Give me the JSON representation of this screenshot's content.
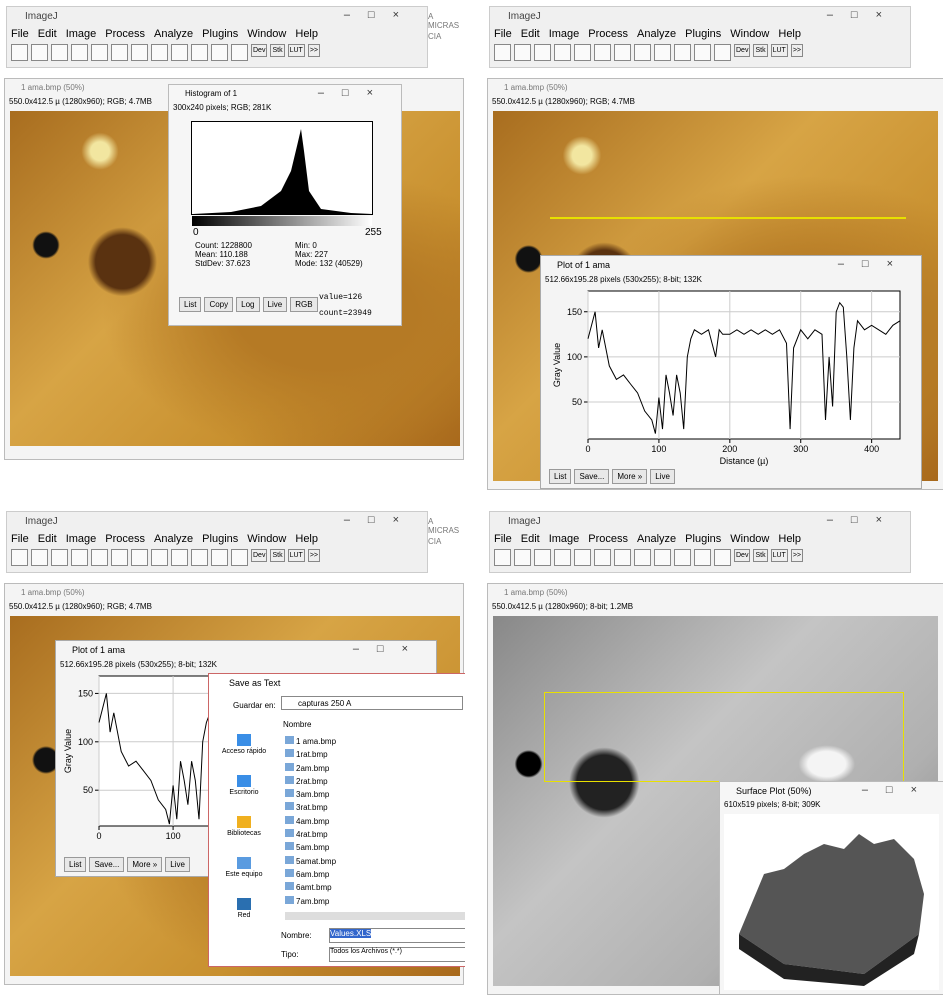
{
  "imagej": {
    "title": "ImageJ",
    "menu": [
      "File",
      "Edit",
      "Image",
      "Process",
      "Analyze",
      "Plugins",
      "Window",
      "Help"
    ],
    "toolbar": [
      "Dev",
      "Stk",
      "LUT",
      ">>"
    ],
    "background_text": [
      "A MICRAS",
      "CIA"
    ]
  },
  "image_window": {
    "title": "1 ama.bmp (50%)",
    "info_rgb": "550.0x412.5 µ (1280x960); RGB; 4.7MB",
    "info_8bit": "550.0x412.5 µ (1280x960); 8-bit; 1.2MB"
  },
  "histogram": {
    "title": "Histogram of 1",
    "info": "300x240 pixels; RGB; 281K",
    "axis_min": "0",
    "axis_max": "255",
    "stats": [
      "Count: 1228800",
      "Min: 0",
      "Mean: 110.188",
      "Max: 227",
      "StdDev: 37.623",
      "Mode: 132 (40529)"
    ],
    "buttons": [
      "List",
      "Copy",
      "Log",
      "Live",
      "RGB"
    ],
    "value": "value=126",
    "count": "count=23949"
  },
  "profile": {
    "x": [
      0,
      10,
      15,
      20,
      30,
      40,
      50,
      60,
      70,
      80,
      90,
      95,
      100,
      105,
      110,
      115,
      120,
      125,
      130,
      135,
      140,
      145,
      150,
      160,
      170,
      180,
      185,
      190,
      200,
      210,
      220,
      230,
      240,
      250,
      260,
      270,
      280,
      285,
      290,
      300,
      310,
      320,
      330,
      335,
      340,
      345,
      350,
      355,
      360,
      365,
      370,
      375,
      380,
      390,
      400,
      410,
      420,
      430,
      440
    ],
    "values": [
      120,
      150,
      110,
      130,
      90,
      75,
      80,
      70,
      60,
      40,
      30,
      15,
      55,
      20,
      80,
      60,
      35,
      80,
      60,
      20,
      100,
      120,
      130,
      125,
      130,
      100,
      130,
      125,
      125,
      130,
      125,
      130,
      125,
      130,
      125,
      130,
      115,
      20,
      110,
      130,
      120,
      130,
      125,
      30,
      100,
      45,
      150,
      160,
      155,
      100,
      30,
      110,
      140,
      130,
      135,
      130,
      125,
      135,
      140
    ]
  },
  "plots": [
    {
      "title": "Plot of 1 ama",
      "info": "512.66x195.28 pixels (530x255); 8-bit; 132K",
      "ylabel": "Gray Value",
      "xlabel": "Distance (µ)",
      "xlim": [
        0,
        440
      ],
      "ylim": [
        9,
        173
      ],
      "xticks": [
        0,
        100,
        200,
        300,
        400
      ],
      "yticks": [
        50,
        100,
        150
      ]
    },
    {
      "xlim": [
        0,
        440
      ],
      "ylim": [
        13,
        168
      ],
      "xticks": [
        0,
        100
      ],
      "yticks": [
        50,
        100,
        150
      ]
    }
  ],
  "plot_buttons": [
    "List",
    "Save...",
    "More »",
    "Live"
  ],
  "save_dialog": {
    "title": "Save as Text",
    "save_in_label": "Guardar en:",
    "folder": "capturas 250 A",
    "column": "Nombre",
    "places": [
      "Acceso rápido",
      "Escritorio",
      "Bibliotecas",
      "Este equipo",
      "Red"
    ],
    "files": [
      "1 ama.bmp",
      "1rat.bmp",
      "2am.bmp",
      "2rat.bmp",
      "3am.bmp",
      "3rat.bmp",
      "4am.bmp",
      "4rat.bmp",
      "5am.bmp",
      "5amat.bmp",
      "6am.bmp",
      "6amt.bmp",
      "7am.bmp"
    ],
    "name_label": "Nombre:",
    "name_value": "Values.XLS",
    "type_label": "Tipo:",
    "type_value": "Todos los Archivos (*.*)"
  },
  "surface_plot": {
    "title": "Surface Plot (50%)",
    "info": "610x519 pixels; 8-bit; 309K"
  }
}
